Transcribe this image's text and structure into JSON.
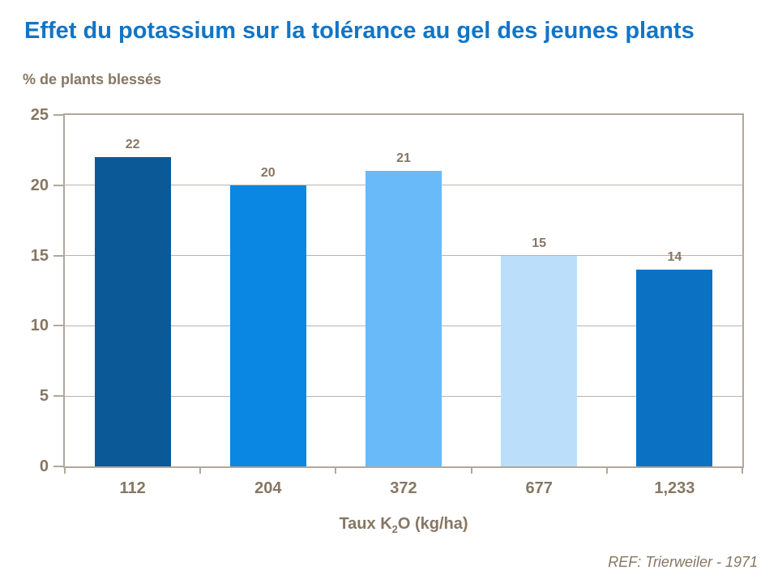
{
  "title": "Effet du potassium sur la tolérance au gel des jeunes plants",
  "ref_note": "REF: Trierweiler - 1971",
  "colors": {
    "title_blue": "#1175c6",
    "text_brown": "#877663",
    "axis_line": "#b2a79a",
    "gridline": "#bdb3a6",
    "background": "#ffffff"
  },
  "chart_data": {
    "type": "bar",
    "title": "Effet du potassium sur la tolérance au gel des jeunes plants",
    "ylabel": "% de plants blessés",
    "xlabel_parts": {
      "pre": "Taux K",
      "sub": "2",
      "post": "O (kg/ha)"
    },
    "categories": [
      "112",
      "204",
      "372",
      "677",
      "1,233"
    ],
    "values": [
      22,
      20,
      21,
      15,
      14
    ],
    "bar_colors": [
      "#0c5998",
      "#0987e3",
      "#68baf9",
      "#bbdefb",
      "#0b72c3"
    ],
    "ylim": [
      0,
      25
    ],
    "yticks": [
      0,
      5,
      10,
      15,
      20,
      25
    ],
    "grid": "horizontal",
    "legend": "none",
    "data_labels": "above bars"
  }
}
